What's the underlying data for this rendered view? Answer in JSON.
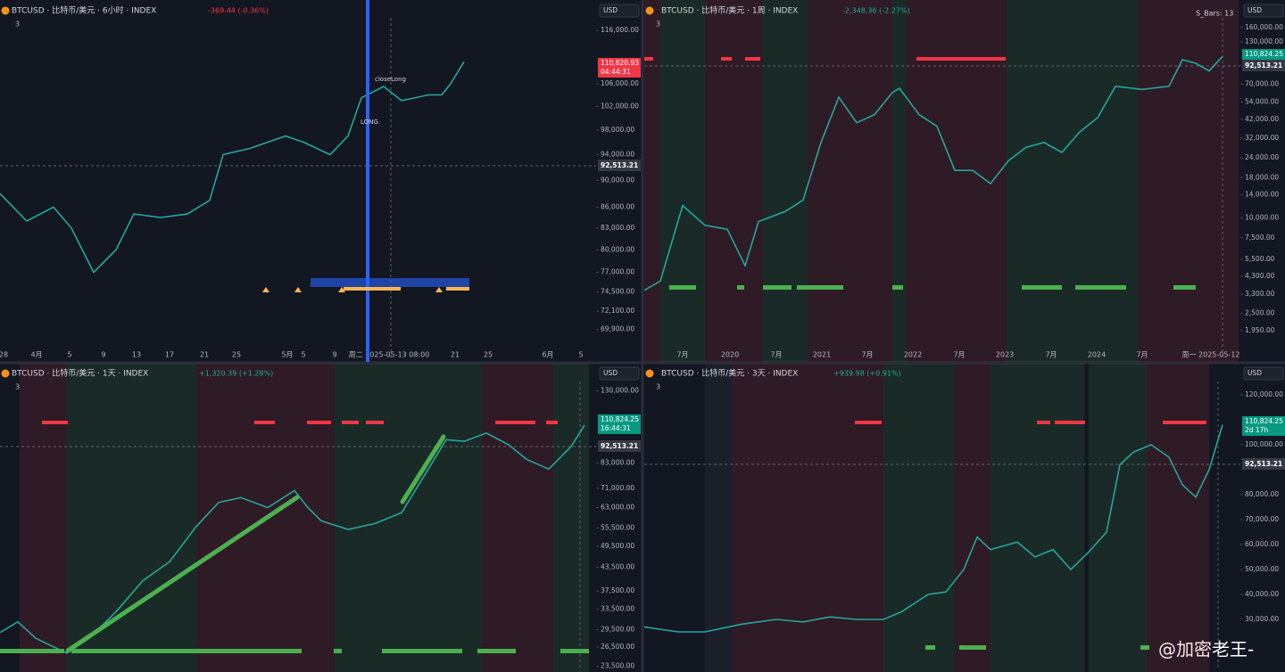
{
  "panels": [
    {
      "symbol": "BTCUSD · 比特币/美元 · 6小时 · INDEX",
      "change": "-369.44 (-0.36%)",
      "change_color": "#f23645",
      "indicators": "3",
      "currency": "USD",
      "log_scale": true,
      "ylim": [
        68000,
        118500
      ],
      "yticks": [
        {
          "value": 116000,
          "label": "116,000.00"
        },
        {
          "value": 106000,
          "label": "106,000.00"
        },
        {
          "value": 102000,
          "label": "102,000.00"
        },
        {
          "value": 98000,
          "label": "98,000.00"
        },
        {
          "value": 94000,
          "label": "94,000.00"
        },
        {
          "value": 90000,
          "label": "90,000.00"
        },
        {
          "value": 86000,
          "label": "86,000.00"
        },
        {
          "value": 83000,
          "label": "83,000.00"
        },
        {
          "value": 80000,
          "label": "80,000.00"
        },
        {
          "value": 77000,
          "label": "77,000.00"
        },
        {
          "value": 74500,
          "label": "74,500.00"
        },
        {
          "value": 72100,
          "label": "72,100.00"
        },
        {
          "value": 69900,
          "label": "69,900.00"
        }
      ],
      "xticks": [
        "28",
        "4月",
        "5",
        "9",
        "13",
        "17",
        "21",
        "25",
        "5月",
        "5",
        "9",
        "周二 2025-05-13   08:00",
        "21",
        "25",
        "6月",
        "5"
      ],
      "price": [
        88000,
        84000,
        86000,
        83000,
        77000,
        80000,
        85000,
        84500,
        85000,
        87000,
        94000,
        95000,
        97000,
        96000,
        94000,
        97000,
        103500,
        105500,
        103000,
        104000,
        104000,
        106000,
        110000
      ],
      "last_price": "110,820.93",
      "countdown": "04:44:31",
      "crosshair_price": "92,513.21",
      "annotations": [
        "closeLong",
        "LONG"
      ]
    },
    {
      "symbol": "BTCUSD · 比特币/美元 · 1周 · INDEX",
      "change": "-2,348.36 (-2.27%)",
      "change_color": "#22ab94",
      "indicators": "3",
      "currency": "USD",
      "log_scale": true,
      "ylim": [
        1560,
        184000
      ],
      "yticks": [
        {
          "value": 160000,
          "label": "160,000.00"
        },
        {
          "value": 130000,
          "label": "130,000.00"
        },
        {
          "value": 70000,
          "label": "70,000.00"
        },
        {
          "value": 54000,
          "label": "54,000.00"
        },
        {
          "value": 42000,
          "label": "42,000.00"
        },
        {
          "value": 32000,
          "label": "32,000.00"
        },
        {
          "value": 24000,
          "label": "24,000.00"
        },
        {
          "value": 18000,
          "label": "18,000.00"
        },
        {
          "value": 14000,
          "label": "14,000.00"
        },
        {
          "value": 10000,
          "label": "10,000.00"
        },
        {
          "value": 7500,
          "label": "7,500.00"
        },
        {
          "value": 5500,
          "label": "5,500.00"
        },
        {
          "value": 4300,
          "label": "4,300.00"
        },
        {
          "value": 3300,
          "label": "3,300.00"
        },
        {
          "value": 2500,
          "label": "2,500.00"
        },
        {
          "value": 1950,
          "label": "1,950.00"
        }
      ],
      "xticks": [
        "7月",
        "2020",
        "7月",
        "2021",
        "7月",
        "2022",
        "7月",
        "2023",
        "7月",
        "2024",
        "7月",
        "周一 2025-05-12"
      ],
      "price": [
        3500,
        4000,
        12000,
        9000,
        8500,
        5000,
        9500,
        11000,
        13000,
        30000,
        58000,
        40000,
        45000,
        62000,
        66000,
        45000,
        38000,
        20000,
        20000,
        16500,
        23000,
        28000,
        30000,
        26000,
        35000,
        43000,
        68000,
        65000,
        68000,
        100000,
        95000,
        85000,
        105000
      ],
      "last_price": "110,824.25",
      "crosshair_price": "92,513.21",
      "annotations": [
        "S_Bars: 13"
      ]
    },
    {
      "symbol": "BTCUSD · 比特币/美元 · 1天 · INDEX",
      "change": "+1,320.39 (+1.28%)",
      "change_color": "#22ab94",
      "indicators": "3",
      "currency": "USD",
      "log_scale": true,
      "ylim": [
        22700,
        144000
      ],
      "yticks": [
        {
          "value": 130000,
          "label": "130,000.00"
        },
        {
          "value": 83000,
          "label": "83,000.00"
        },
        {
          "value": 71000,
          "label": "71,000.00"
        },
        {
          "value": 63000,
          "label": "63,000.00"
        },
        {
          "value": 55500,
          "label": "55,500.00"
        },
        {
          "value": 49500,
          "label": "49,500.00"
        },
        {
          "value": 43500,
          "label": "43,500.00"
        },
        {
          "value": 37500,
          "label": "37,500.00"
        },
        {
          "value": 33500,
          "label": "33,500.00"
        },
        {
          "value": 29500,
          "label": "29,500.00"
        },
        {
          "value": 26500,
          "label": "26,500.00"
        },
        {
          "value": 23500,
          "label": "23,500.00"
        }
      ],
      "xticks": [],
      "price": [
        29000,
        31000,
        28000,
        25500,
        28000,
        33000,
        40000,
        45000,
        56000,
        65000,
        67000,
        63000,
        70000,
        63000,
        58000,
        55000,
        57000,
        61000,
        80000,
        96000,
        95000,
        100000,
        93000,
        85000,
        80000,
        92000,
        105000
      ],
      "last_price": "110,824.25",
      "countdown": "16:44:31",
      "crosshair_price": "92,513.21",
      "annotations": []
    },
    {
      "symbol": "BTCUSD · 比特币/美元 · 3天 · INDEX",
      "change": "+939.98 (+0.91%)",
      "change_color": "#22ab94",
      "indicators": "3",
      "currency": "USD",
      "log_scale": false,
      "ylim": [
        8930,
        128200
      ],
      "yticks": [
        {
          "value": 120000,
          "label": "120,000.00"
        },
        {
          "value": 100000,
          "label": "100,000.00"
        },
        {
          "value": 80000,
          "label": "80,000.00"
        },
        {
          "value": 70000,
          "label": "70,000.00"
        },
        {
          "value": 60000,
          "label": "60,000.00"
        },
        {
          "value": 50000,
          "label": "50,000.00"
        },
        {
          "value": 40000,
          "label": "40,000.00"
        },
        {
          "value": 30000,
          "label": "30,000.00"
        }
      ],
      "xticks": [],
      "price": [
        27000,
        25000,
        25000,
        28000,
        30000,
        29000,
        31000,
        30000,
        30000,
        33000,
        40000,
        41000,
        50000,
        63000,
        58000,
        61000,
        55000,
        58000,
        50000,
        57000,
        65000,
        92000,
        97000,
        100000,
        95000,
        84000,
        79000,
        90000,
        108000
      ],
      "last_price": "110,824.25",
      "countdown": "2d 17h",
      "crosshair_price": "92,513.21",
      "annotations": []
    }
  ],
  "watermark": "@加密老王-"
}
